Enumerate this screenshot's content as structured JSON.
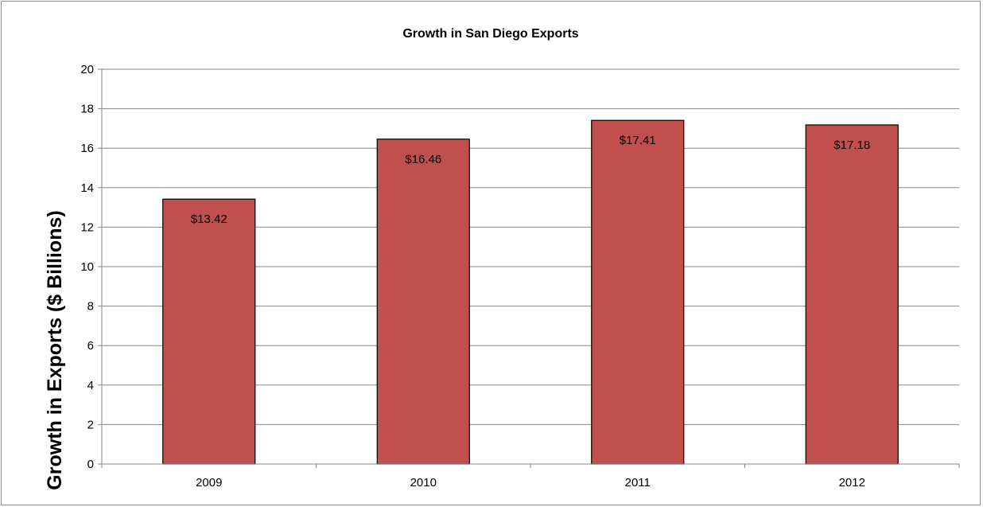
{
  "chart_data": {
    "type": "bar",
    "title": "Growth in San Diego Exports",
    "xlabel": "",
    "ylabel": "Growth in Exports ($ Billions)",
    "categories": [
      "2009",
      "2010",
      "2011",
      "2012"
    ],
    "series": [
      {
        "values": [
          13.42,
          16.46,
          17.41,
          17.18
        ],
        "data_labels": [
          "$13.42",
          "$16.46",
          "$17.41",
          "$17.18"
        ],
        "color": "#c0504d"
      }
    ],
    "ylim": [
      0,
      20
    ],
    "yticks": [
      "0",
      "2",
      "4",
      "6",
      "8",
      "10",
      "12",
      "14",
      "16",
      "18",
      "20"
    ],
    "grid": true,
    "legend": "none"
  }
}
